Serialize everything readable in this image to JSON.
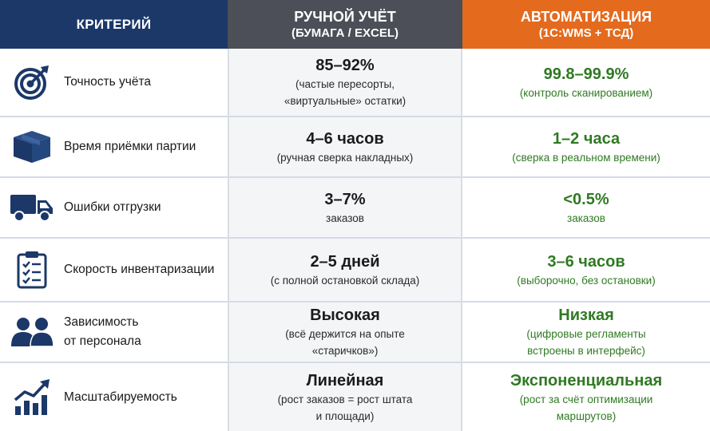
{
  "header": {
    "criterion": "КРИТЕРИЙ",
    "manual_title": "РУЧНОЙ УЧЁТ",
    "manual_sub": "(БУМАГА / EXCEL)",
    "auto_title": "АВТОМАТИЗАЦИЯ",
    "auto_sub": "(1С:WMS + ТСД)"
  },
  "colors": {
    "header_criterion": "#1b3868",
    "header_manual": "#4c4f57",
    "header_auto": "#e46a1e",
    "icon": "#1b3868",
    "auto_text": "#2f7a22"
  },
  "rows": [
    {
      "icon": "target-icon",
      "label": "Точность учёта",
      "manual_value": "85–92%",
      "manual_note": "(частые пересорты,",
      "manual_note2": "«виртуальные» остатки)",
      "auto_value": "99.8–99.9%",
      "auto_note": "(контроль сканированием)",
      "auto_note2": ""
    },
    {
      "icon": "box-icon",
      "label": "Время приёмки партии",
      "manual_value": "4–6 часов",
      "manual_note": "(ручная сверка накладных)",
      "manual_note2": "",
      "auto_value": "1–2 часа",
      "auto_note": "(сверка в реальном времени)",
      "auto_note2": ""
    },
    {
      "icon": "truck-icon",
      "label": "Ошибки отгрузки",
      "manual_value": "3–7%",
      "manual_note": "заказов",
      "manual_note2": "",
      "auto_value": "<0.5%",
      "auto_note": "заказов",
      "auto_note2": ""
    },
    {
      "icon": "clipboard-icon",
      "label": "Скорость инвентаризации",
      "manual_value": "2–5 дней",
      "manual_note": "(с полной остановкой склада)",
      "manual_note2": "",
      "auto_value": "3–6 часов",
      "auto_note": "(выборочно, без остановки)",
      "auto_note2": ""
    },
    {
      "icon": "people-icon",
      "label": "Зависимость",
      "label2": "от персонала",
      "manual_value": "Высокая",
      "manual_note": "(всё держится на опыте",
      "manual_note2": "«старичков»)",
      "auto_value": "Низкая",
      "auto_note": "(цифровые регламенты",
      "auto_note2": "встроены в интерфейс)"
    },
    {
      "icon": "growth-chart-icon",
      "label": "Масштабируемость",
      "manual_value": "Линейная",
      "manual_note": "(рост заказов = рост штата",
      "manual_note2": "и площади)",
      "auto_value": "Экспоненциальная",
      "auto_note": "(рост за счёт оптимизации",
      "auto_note2": "маршрутов)"
    }
  ]
}
